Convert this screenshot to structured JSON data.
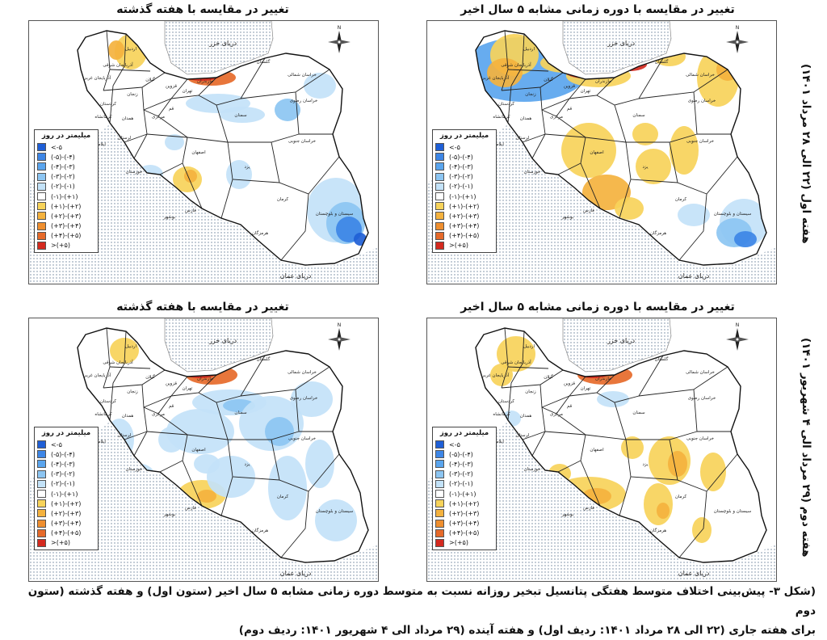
{
  "panels": [
    {
      "id": "r1c1",
      "title": "تغییر در مقایسه با دوره زمانی مشابه ۵ سال اخیر",
      "scheme": "warm-south"
    },
    {
      "id": "r1c2",
      "title": "تغییر در مقایسه با هفته گذشته",
      "scheme": "cool-east"
    },
    {
      "id": "r2c1",
      "title": "تغییر در مقایسه با دوره زمانی مشابه ۵ سال اخیر",
      "scheme": "warm-center"
    },
    {
      "id": "r2c2",
      "title": "تغییر در مقایسه با هفته گذشته",
      "scheme": "cool-all"
    }
  ],
  "map_labels": {
    "caspian": "دریای خزر",
    "oman": "دریای عمان",
    "north": "N",
    "provinces": {
      "ardabil": "اردبیل",
      "east_azar": "آذربایجان شرقی",
      "west_azar": "آذربایجان غربی",
      "gilan": "گیلان",
      "mazandaran": "مازندران",
      "golestan": "گلستان",
      "n_khorasan": "خراسان شمالی",
      "razavi": "خراسان رضوی",
      "s_khorasan": "خراسان جنوبی",
      "semnan": "سمنان",
      "tehran": "تهران",
      "qazvin": "قزوین",
      "zanjan": "زنجان",
      "kurdistan": "کردستان",
      "kermanshah": "کرمانشاه",
      "hamedan": "همدان",
      "markazi": "مرکزی",
      "qom": "قم",
      "lorestan": "لرستان",
      "ilam": "ایلام",
      "khuzestan": "خوزستان",
      "isfahan": "اصفهان",
      "yazd": "یزد",
      "kerman": "کرمان",
      "fars": "فارس",
      "bushehr": "بوشهر",
      "hormozgan": "هرمزگان",
      "sistan": "سیستان و بلوچستان"
    }
  },
  "legend": {
    "title": "میلیمتر در روز",
    "items": [
      {
        "label": "<-۵",
        "color": "#1f5fd6"
      },
      {
        "label": "(-۵)-(-۴)",
        "color": "#3d86e6"
      },
      {
        "label": "(-۴)-(-۳)",
        "color": "#5aa5ee"
      },
      {
        "label": "(-۳)-(-۲)",
        "color": "#8cc5f2"
      },
      {
        "label": "(-۲)-(-۱)",
        "color": "#c3e2f8"
      },
      {
        "label": "(-۱)-(+۱)",
        "color": "#ffffff"
      },
      {
        "label": "(+۱)-(+۲)",
        "color": "#f7d35a"
      },
      {
        "label": "(+۲)-(+۳)",
        "color": "#f4b23e"
      },
      {
        "label": "(+۳)-(+۴)",
        "color": "#ef8f2f"
      },
      {
        "label": "(+۴)-(+۵)",
        "color": "#e66a2a"
      },
      {
        "label": ">(+۵)",
        "color": "#d42a1f"
      }
    ]
  },
  "rows": [
    {
      "label": "هفته اول (۲۲ الی ۲۸ مرداد ۱۴۰۱)"
    },
    {
      "label": "هفته دوم (۲۹ مرداد الی ۴ شهریور ۱۴۰۱)"
    }
  ],
  "caption": {
    "line1": "(شکل ۳- پیش‌بینی اختلاف متوسط هفتگی پتانسیل تبخیر روزانه نسبت به متوسط دوره زمانی مشابه ۵ سال اخیر (ستون اول) و هفته گذشته (ستون دوم",
    "line2": "برای هفته جاری (۲۲ الی ۲۸ مرداد ۱۴۰۱: ردیف اول) و هفته آینده (۲۹ مرداد الی ۴ شهریور ۱۴۰۱: ردیف دوم)"
  }
}
